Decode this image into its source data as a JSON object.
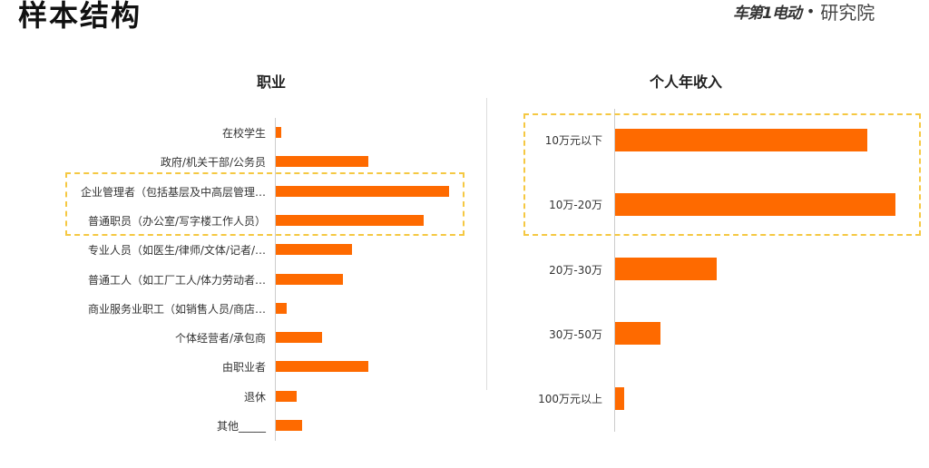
{
  "page": {
    "title": "样本结构",
    "logo": {
      "mark": "车第1电动",
      "dot": "•",
      "text": "研究院"
    }
  },
  "colors": {
    "bar": "#fe6a00",
    "highlight": "#f5c842"
  },
  "chart_data": [
    {
      "type": "bar",
      "orientation": "horizontal",
      "title": "职业",
      "categories": [
        "在校学生",
        "政府/机关干部/公务员",
        "企业管理者（包括基层及中高层管理…",
        "普通职员（办公室/写字楼工作人员）",
        "专业人员（如医生/律师/文体/记者/…",
        "普通工人（如工厂工人/体力劳动者…",
        "商业服务业职工（如销售人员/商店…",
        "个体经营者/承包商",
        "由职业者",
        "退休",
        "其他_____"
      ],
      "values": [
        0.7,
        12.2,
        22.8,
        19.5,
        10.0,
        8.8,
        1.4,
        6.1,
        12.2,
        2.7,
        3.5
      ],
      "unit": "relative share (%), estimated",
      "highlighted": [
        2,
        3
      ]
    },
    {
      "type": "bar",
      "orientation": "horizontal",
      "title": "个人年收入",
      "categories": [
        "10万元以下",
        "10万-20万",
        "20万-30万",
        "30万-50万",
        "100万元以上"
      ],
      "values": [
        36.6,
        40.7,
        14.8,
        6.6,
        1.3
      ],
      "unit": "relative share (%), estimated",
      "highlighted": [
        0,
        1
      ]
    }
  ]
}
